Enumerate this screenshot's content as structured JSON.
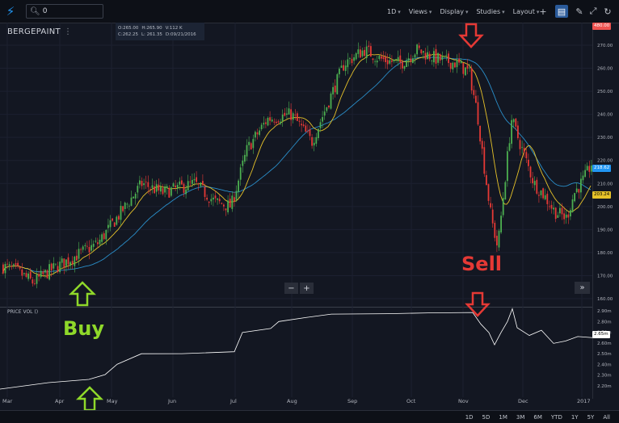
{
  "toolbar": {
    "search_value": "0",
    "interval": "1D",
    "views": "Views",
    "display": "Display",
    "studies": "Studies",
    "layout": "Layout"
  },
  "symbol": "BERGEPAINT",
  "ohlc": {
    "open": "O:265.00",
    "high": "H:265.90",
    "volume": "V:112 K",
    "close": "C:262.25",
    "low": "L: 261.35",
    "date": "D:09/21/2016"
  },
  "volume_indicator_label": "PRICE VOL ()",
  "price_axis": [
    "270.00",
    "260.00",
    "250.00",
    "240.00",
    "230.00",
    "220.00",
    "210.00",
    "200.00",
    "190.00",
    "180.00",
    "170.00",
    "160.00"
  ],
  "price_tags": {
    "top": "480.00",
    "blue": "218.62",
    "yellow": "203.24"
  },
  "volume_axis": [
    "2.90m",
    "2.80m",
    "2.70m",
    "2.60m",
    "2.50m",
    "2.40m",
    "2.30m",
    "2.20m"
  ],
  "volume_tag": "2.65m",
  "time_axis": [
    "Mar",
    "Apr",
    "May",
    "Jun",
    "Jul",
    "Aug",
    "Sep",
    "Oct",
    "Nov",
    "Dec",
    "2017"
  ],
  "ranges": [
    "1D",
    "5D",
    "1M",
    "3M",
    "6M",
    "YTD",
    "1Y",
    "5Y",
    "All"
  ],
  "annotations": {
    "buy": "Buy",
    "sell": "Sell"
  },
  "colors": {
    "background": "#131722",
    "up_candle": "#4caf50",
    "down_candle": "#e53935",
    "sma_short": "#e6c229",
    "sma_long": "#2a8ec9",
    "buy": "#8fd82a",
    "sell": "#e53935",
    "volume_line": "#ffffff"
  },
  "icons": [
    "lightning-logo-icon",
    "search-icon",
    "plus-crosshair-icon",
    "pencil-icon",
    "chat-icon",
    "fullscreen-icon",
    "undo-icon"
  ]
}
